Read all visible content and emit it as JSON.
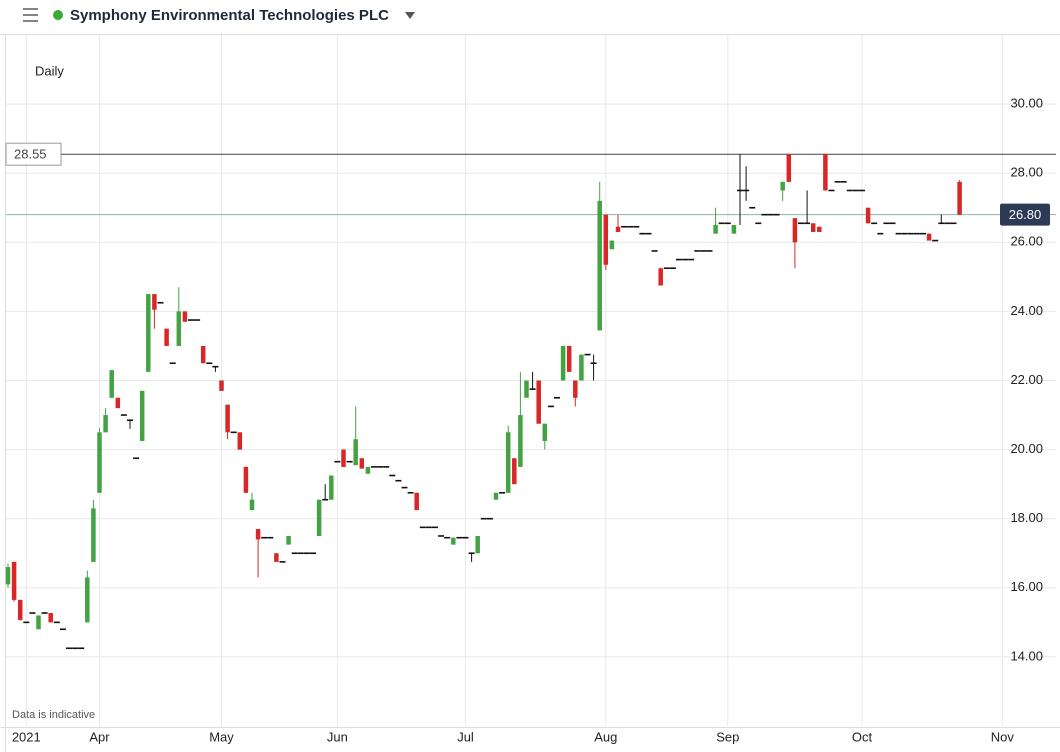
{
  "chart_data": {
    "type": "candlestick",
    "title": "Symphony Environmental Technologies PLC",
    "interval": "Daily",
    "note": "Data is indicative",
    "up_color": "#43a343",
    "down_color": "#d92626",
    "flat_color": "#111111",
    "grid": true,
    "ylim": [
      12,
      32
    ],
    "yticks": [
      {
        "value": 14,
        "label": "14.00"
      },
      {
        "value": 16,
        "label": "16.00"
      },
      {
        "value": 18,
        "label": "18.00"
      },
      {
        "value": 20,
        "label": "20.00"
      },
      {
        "value": 22,
        "label": "22.00"
      },
      {
        "value": 24,
        "label": "24.00"
      },
      {
        "value": 26,
        "label": "26.00"
      },
      {
        "value": 28,
        "label": "28.00"
      },
      {
        "value": 30,
        "label": "30.00"
      }
    ],
    "reference_line": 28.55,
    "last_price": {
      "value": 26.8,
      "label": "26.80"
    },
    "categories": [
      null,
      null,
      null,
      "2021",
      null,
      null,
      null,
      null,
      null,
      null,
      null,
      null,
      null,
      null,
      null,
      "Apr",
      null,
      null,
      null,
      null,
      null,
      null,
      null,
      null,
      null,
      null,
      null,
      null,
      null,
      null,
      null,
      null,
      null,
      null,
      null,
      "May",
      null,
      null,
      null,
      null,
      null,
      null,
      null,
      null,
      null,
      null,
      null,
      null,
      null,
      null,
      null,
      null,
      null,
      null,
      "Jun",
      null,
      null,
      null,
      null,
      null,
      null,
      null,
      null,
      null,
      null,
      null,
      null,
      null,
      null,
      null,
      null,
      null,
      null,
      null,
      null,
      "Jul",
      null,
      null,
      null,
      null,
      null,
      null,
      null,
      null,
      null,
      null,
      null,
      null,
      null,
      null,
      null,
      null,
      null,
      null,
      null,
      null,
      null,
      null,
      "Aug",
      null,
      null,
      null,
      null,
      null,
      null,
      null,
      null,
      null,
      null,
      null,
      null,
      null,
      null,
      null,
      null,
      null,
      null,
      null,
      "Sep",
      null,
      null,
      null,
      null,
      null,
      null,
      null,
      null,
      null,
      null,
      null,
      null,
      null,
      null,
      null,
      null,
      null,
      null,
      null,
      null,
      null,
      "Oct",
      null,
      null,
      null,
      null,
      null,
      null,
      null,
      null,
      null,
      null,
      null,
      null,
      null,
      null,
      null,
      null,
      null,
      null,
      null,
      null,
      null,
      null,
      "Nov"
    ],
    "ohlc": [
      [
        16.1,
        16.7,
        16.0,
        16.6
      ],
      [
        16.75,
        16.75,
        15.6,
        15.65
      ],
      [
        15.65,
        15.65,
        15.05,
        15.07
      ],
      [
        15.0,
        15.0,
        15.0,
        15.0
      ],
      [
        15.27,
        15.27,
        15.27,
        15.27
      ],
      [
        14.8,
        15.2,
        14.8,
        15.2
      ],
      [
        15.27,
        15.27,
        15.27,
        15.27
      ],
      [
        15.27,
        15.27,
        15.0,
        15.0
      ],
      [
        15.0,
        15.0,
        15.0,
        15.0
      ],
      [
        14.8,
        14.8,
        14.8,
        14.8
      ],
      [
        14.25,
        14.25,
        14.25,
        14.25
      ],
      [
        14.25,
        14.25,
        14.25,
        14.25
      ],
      [
        14.25,
        14.25,
        14.25,
        14.25
      ],
      [
        15.0,
        16.5,
        15.0,
        16.3
      ],
      [
        16.75,
        18.54,
        16.75,
        18.3
      ],
      [
        18.75,
        20.62,
        18.75,
        20.5
      ],
      [
        20.5,
        21.2,
        20.5,
        21.0
      ],
      [
        21.5,
        22.3,
        21.5,
        22.3
      ],
      [
        21.5,
        21.5,
        21.2,
        21.2
      ],
      [
        21.0,
        21.0,
        21.0,
        21.0
      ],
      [
        20.85,
        20.85,
        20.6,
        20.85
      ],
      [
        19.75,
        19.75,
        19.75,
        19.75
      ],
      [
        20.25,
        21.7,
        20.25,
        21.7
      ],
      [
        22.25,
        24.5,
        22.25,
        24.5
      ],
      [
        24.5,
        24.5,
        23.5,
        24.05
      ],
      [
        24.25,
        24.25,
        24.25,
        24.25
      ],
      [
        23.5,
        23.5,
        23.0,
        23.0
      ],
      [
        22.5,
        22.5,
        22.5,
        22.5
      ],
      [
        23.0,
        24.7,
        23.0,
        24.0
      ],
      [
        24.0,
        24.0,
        23.7,
        23.7
      ],
      [
        23.75,
        23.75,
        23.75,
        23.75
      ],
      [
        23.75,
        23.75,
        23.75,
        23.75
      ],
      [
        23.0,
        23.0,
        22.5,
        22.5
      ],
      [
        22.5,
        22.5,
        22.5,
        22.5
      ],
      [
        22.4,
        22.4,
        22.25,
        22.4
      ],
      [
        22.0,
        22.0,
        21.7,
        21.7
      ],
      [
        21.3,
        21.3,
        20.3,
        20.5
      ],
      [
        20.5,
        20.5,
        20.5,
        20.5
      ],
      [
        20.5,
        20.5,
        20.0,
        20.0
      ],
      [
        19.5,
        19.5,
        18.75,
        18.75
      ],
      [
        18.25,
        18.75,
        18.25,
        18.55
      ],
      [
        17.7,
        17.7,
        16.3,
        17.4
      ],
      [
        17.45,
        17.45,
        17.45,
        17.45
      ],
      [
        17.45,
        17.45,
        17.45,
        17.45
      ],
      [
        17.0,
        17.0,
        16.75,
        16.75
      ],
      [
        16.75,
        16.75,
        16.75,
        16.75
      ],
      [
        17.25,
        17.5,
        17.25,
        17.5
      ],
      [
        17.0,
        17.0,
        17.0,
        17.0
      ],
      [
        17.0,
        17.0,
        17.0,
        17.0
      ],
      [
        17.0,
        17.0,
        17.0,
        17.0
      ],
      [
        17.0,
        17.0,
        17.0,
        17.0
      ],
      [
        17.5,
        18.55,
        17.5,
        18.55
      ],
      [
        18.55,
        19.0,
        18.55,
        18.55
      ],
      [
        18.55,
        19.25,
        18.55,
        19.25
      ],
      [
        19.65,
        19.65,
        19.65,
        19.65
      ],
      [
        20.0,
        20.0,
        19.5,
        19.5
      ],
      [
        19.65,
        19.65,
        19.65,
        19.65
      ],
      [
        19.55,
        21.25,
        19.55,
        20.3
      ],
      [
        19.75,
        19.75,
        19.45,
        19.45
      ],
      [
        19.3,
        19.5,
        19.3,
        19.5
      ],
      [
        19.5,
        19.5,
        19.5,
        19.5
      ],
      [
        19.5,
        19.5,
        19.5,
        19.5
      ],
      [
        19.5,
        19.5,
        19.5,
        19.5
      ],
      [
        19.25,
        19.25,
        19.25,
        19.25
      ],
      [
        19.1,
        19.1,
        19.1,
        19.1
      ],
      [
        18.9,
        18.9,
        18.9,
        18.9
      ],
      [
        18.75,
        18.75,
        18.75,
        18.75
      ],
      [
        18.75,
        18.75,
        18.25,
        18.25
      ],
      [
        17.75,
        17.75,
        17.75,
        17.75
      ],
      [
        17.75,
        17.75,
        17.75,
        17.75
      ],
      [
        17.75,
        17.75,
        17.75,
        17.75
      ],
      [
        17.5,
        17.5,
        17.5,
        17.5
      ],
      [
        17.45,
        17.45,
        17.45,
        17.45
      ],
      [
        17.25,
        17.45,
        17.25,
        17.45
      ],
      [
        17.45,
        17.45,
        17.45,
        17.45
      ],
      [
        17.45,
        17.45,
        17.45,
        17.45
      ],
      [
        17.0,
        17.0,
        16.75,
        17.0
      ],
      [
        17.0,
        17.5,
        17.0,
        17.5
      ],
      [
        18.0,
        18.0,
        18.0,
        18.0
      ],
      [
        18.0,
        18.0,
        18.0,
        18.0
      ],
      [
        18.55,
        18.75,
        18.55,
        18.75
      ],
      [
        18.75,
        18.75,
        18.75,
        18.75
      ],
      [
        18.75,
        20.7,
        18.75,
        20.5
      ],
      [
        19.75,
        19.75,
        19.0,
        19.0
      ],
      [
        19.5,
        22.25,
        19.5,
        21.0
      ],
      [
        21.5,
        22.0,
        21.5,
        22.0
      ],
      [
        21.75,
        22.25,
        21.75,
        21.75
      ],
      [
        22.0,
        22.0,
        20.75,
        20.75
      ],
      [
        20.25,
        20.75,
        20.0,
        20.75
      ],
      [
        21.25,
        21.25,
        21.25,
        21.25
      ],
      [
        21.5,
        21.5,
        21.5,
        21.5
      ],
      [
        22.0,
        23.0,
        22.0,
        23.0
      ],
      [
        23.0,
        23.0,
        22.25,
        22.25
      ],
      [
        22.0,
        22.0,
        21.25,
        21.5
      ],
      [
        22.0,
        22.75,
        22.0,
        22.75
      ],
      [
        22.75,
        22.75,
        22.75,
        22.75
      ],
      [
        22.5,
        22.75,
        22.0,
        22.5
      ],
      [
        23.45,
        27.75,
        23.45,
        27.2
      ],
      [
        26.8,
        26.8,
        25.2,
        25.35
      ],
      [
        25.8,
        26.05,
        25.8,
        26.05
      ],
      [
        26.45,
        26.8,
        26.3,
        26.3
      ],
      [
        26.45,
        26.45,
        26.45,
        26.45
      ],
      [
        26.45,
        26.45,
        26.45,
        26.45
      ],
      [
        26.45,
        26.45,
        26.45,
        26.45
      ],
      [
        26.25,
        26.25,
        26.25,
        26.25
      ],
      [
        26.25,
        26.25,
        26.25,
        26.25
      ],
      [
        25.75,
        25.75,
        25.75,
        25.75
      ],
      [
        25.25,
        25.25,
        24.75,
        24.75
      ],
      [
        25.25,
        25.25,
        25.25,
        25.25
      ],
      [
        25.25,
        25.25,
        25.25,
        25.25
      ],
      [
        25.5,
        25.5,
        25.5,
        25.5
      ],
      [
        25.5,
        25.5,
        25.5,
        25.5
      ],
      [
        25.5,
        25.5,
        25.5,
        25.5
      ],
      [
        25.75,
        25.75,
        25.75,
        25.75
      ],
      [
        25.75,
        25.75,
        25.75,
        25.75
      ],
      [
        25.75,
        25.75,
        25.75,
        25.75
      ],
      [
        26.25,
        27.0,
        26.25,
        26.5
      ],
      [
        26.55,
        26.55,
        26.55,
        26.55
      ],
      [
        26.55,
        26.55,
        26.55,
        26.55
      ],
      [
        26.25,
        26.5,
        26.25,
        26.5
      ],
      [
        27.5,
        28.55,
        26.5,
        27.5
      ],
      [
        27.5,
        28.2,
        27.2,
        27.5
      ],
      [
        27.0,
        27.0,
        27.0,
        27.0
      ],
      [
        26.55,
        26.55,
        26.55,
        26.55
      ],
      [
        26.8,
        26.8,
        26.8,
        26.8
      ],
      [
        26.8,
        26.8,
        26.8,
        26.8
      ],
      [
        26.8,
        26.8,
        26.8,
        26.8
      ],
      [
        27.5,
        27.75,
        27.2,
        27.75
      ],
      [
        28.55,
        28.55,
        27.75,
        27.75
      ],
      [
        26.7,
        26.7,
        25.25,
        26.0
      ],
      [
        26.55,
        26.55,
        26.55,
        26.55
      ],
      [
        26.55,
        27.5,
        26.55,
        26.55
      ],
      [
        26.55,
        26.55,
        26.3,
        26.3
      ],
      [
        26.45,
        26.45,
        26.3,
        26.3
      ],
      [
        28.55,
        28.55,
        27.5,
        27.5
      ],
      [
        27.5,
        27.5,
        27.5,
        27.5
      ],
      [
        27.75,
        27.75,
        27.75,
        27.75
      ],
      [
        27.75,
        27.75,
        27.75,
        27.75
      ],
      [
        27.5,
        27.5,
        27.5,
        27.5
      ],
      [
        27.5,
        27.5,
        27.5,
        27.5
      ],
      [
        27.5,
        27.5,
        27.5,
        27.5
      ],
      [
        27.0,
        27.0,
        26.55,
        26.55
      ],
      [
        26.55,
        26.55,
        26.55,
        26.55
      ],
      [
        26.25,
        26.25,
        26.25,
        26.25
      ],
      [
        26.55,
        26.55,
        26.55,
        26.55
      ],
      [
        26.55,
        26.55,
        26.55,
        26.55
      ],
      [
        26.25,
        26.25,
        26.25,
        26.25
      ],
      [
        26.25,
        26.25,
        26.25,
        26.25
      ],
      [
        26.25,
        26.25,
        26.25,
        26.25
      ],
      [
        26.25,
        26.25,
        26.25,
        26.25
      ],
      [
        26.25,
        26.25,
        26.25,
        26.25
      ],
      [
        26.25,
        26.25,
        26.05,
        26.05
      ],
      [
        26.05,
        26.05,
        26.05,
        26.05
      ],
      [
        26.55,
        26.8,
        26.55,
        26.55
      ],
      [
        26.55,
        26.55,
        26.55,
        26.55
      ],
      [
        26.55,
        26.55,
        26.55,
        26.55
      ],
      [
        27.75,
        27.8,
        26.8,
        26.8
      ],
      null,
      null,
      null,
      null,
      null,
      null,
      null
    ]
  }
}
